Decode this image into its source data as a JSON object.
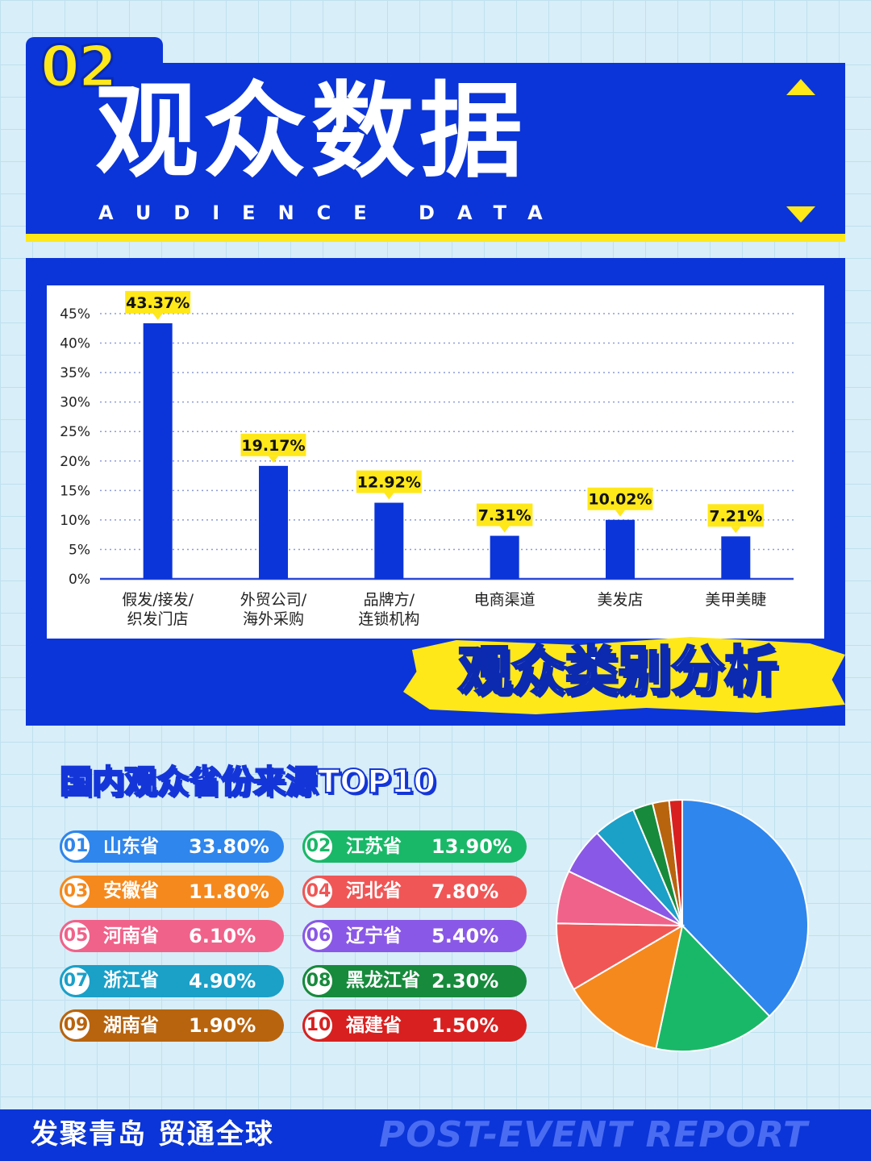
{
  "header": {
    "number": "02",
    "title": "观众数据",
    "subtitle": "AUDIENCE DATA"
  },
  "colors": {
    "brand_blue": "#0b35d8",
    "accent_yellow": "#ffe81a",
    "bar_blue": "#0b35d8"
  },
  "chart_data": [
    {
      "type": "bar",
      "title": "观众类别分析",
      "categories": [
        "假发/接发/\n织发门店",
        "外贸公司/\n海外采购",
        "品牌方/\n连锁机构",
        "电商渠道",
        "美发店",
        "美甲美睫"
      ],
      "values": [
        43.37,
        19.17,
        12.92,
        7.31,
        10.02,
        7.21
      ],
      "data_labels": [
        "43.37%",
        "19.17%",
        "12.92%",
        "7.31%",
        "10.02%",
        "7.21%"
      ],
      "yticks": [
        "0%",
        "5%",
        "10%",
        "15%",
        "20%",
        "25%",
        "30%",
        "35%",
        "40%",
        "45%"
      ],
      "ylim": [
        0,
        45
      ],
      "grid": true,
      "xlabel": "",
      "ylabel": ""
    },
    {
      "type": "pie",
      "title": "国内观众省份来源TOP10",
      "categories": [
        "山东省",
        "江苏省",
        "安徽省",
        "河北省",
        "河南省",
        "辽宁省",
        "浙江省",
        "黑龙江省",
        "湖南省",
        "福建省"
      ],
      "values": [
        33.8,
        13.9,
        11.8,
        7.8,
        6.1,
        5.4,
        4.9,
        2.3,
        1.9,
        1.5
      ],
      "labels": [
        "33.80%",
        "13.90%",
        "11.80%",
        "7.80%",
        "6.10%",
        "5.40%",
        "4.90%",
        "2.30%",
        "1.90%",
        "1.50%"
      ],
      "ranks": [
        "01",
        "02",
        "03",
        "04",
        "05",
        "06",
        "07",
        "08",
        "09",
        "10"
      ],
      "colors": [
        "#2f86ec",
        "#19b868",
        "#f5891d",
        "#f05656",
        "#f0628a",
        "#8a58e6",
        "#1ba0c8",
        "#178a3c",
        "#b8640e",
        "#d82020"
      ]
    }
  ],
  "footer": {
    "slogan": "发聚青岛 贸通全球",
    "report": "POST-EVENT REPORT"
  }
}
